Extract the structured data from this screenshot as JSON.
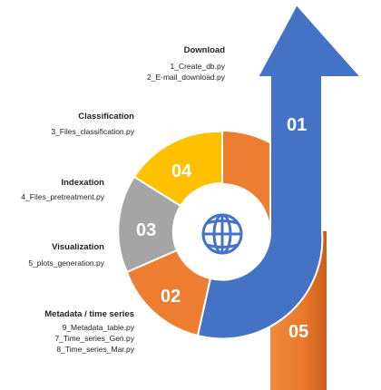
{
  "steps": [
    {
      "num": "01",
      "title": "Download",
      "files": [
        "1_Create_db.py",
        "2_E-mail_download.py"
      ],
      "color": "#4472C4"
    },
    {
      "num": "02",
      "title": "Metadata / time series",
      "files": [
        "9_Metadata_table.py",
        "7_Time_series_Gen.py",
        "8_Time_series_Mar.py"
      ],
      "color": "#ED7D31"
    },
    {
      "num": "03",
      "title": "Visualization",
      "files": [
        "5_plots_generation.py"
      ],
      "color": "#A5A5A5"
    },
    {
      "num": "04",
      "title": "Indexation",
      "files": [
        "4_Files_pretreatment.py"
      ],
      "color": "#FFC000"
    },
    {
      "num": "05",
      "title": "Classification",
      "files": [
        "3_Files_classification.py"
      ],
      "color": "#ED7D31"
    }
  ],
  "center_icon": "globe-icon"
}
